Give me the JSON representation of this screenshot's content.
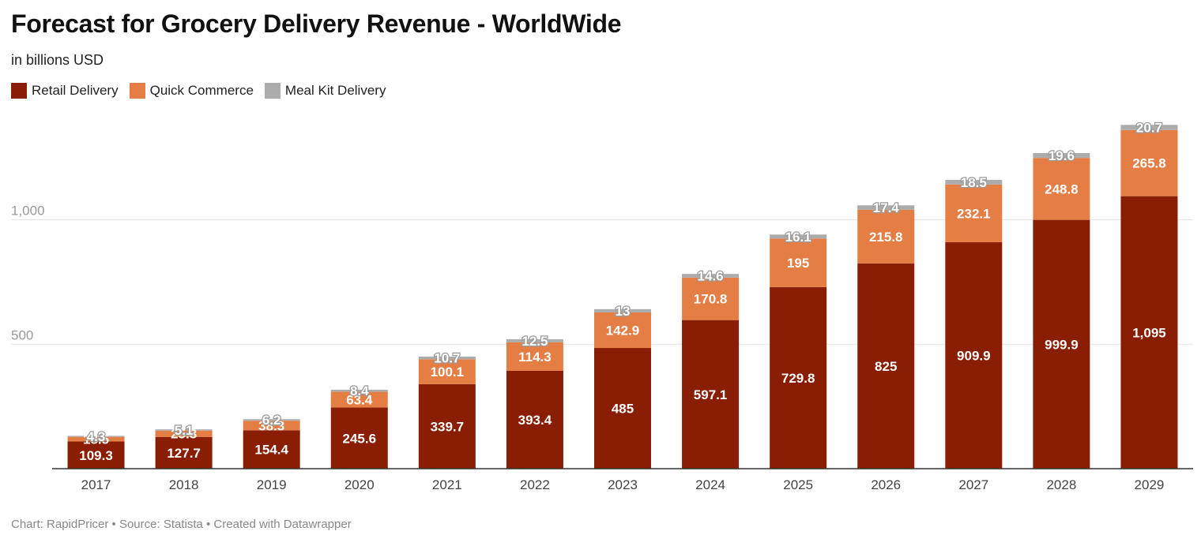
{
  "title": "Forecast for Grocery Delivery Revenue - WorldWide",
  "subtitle": "in billions USD",
  "footer": "Chart: RapidPricer • Source: Statista • Created with Datawrapper",
  "colors": {
    "retail": "#8a1e04",
    "quick": "#e57e45",
    "meal": "#acacac",
    "grid": "#e3e3e3",
    "axis": "#333333"
  },
  "legend": [
    {
      "label": "Retail Delivery",
      "color": "#8a1e04"
    },
    {
      "label": "Quick Commerce",
      "color": "#e57e45"
    },
    {
      "label": "Meal Kit Delivery",
      "color": "#acacac"
    }
  ],
  "chart_data": {
    "type": "bar",
    "stacked": true,
    "categories": [
      "2017",
      "2018",
      "2019",
      "2020",
      "2021",
      "2022",
      "2023",
      "2024",
      "2025",
      "2026",
      "2027",
      "2028",
      "2029"
    ],
    "series": [
      {
        "name": "Retail Delivery",
        "values": [
          109.3,
          127.7,
          154.4,
          245.6,
          339.7,
          393.4,
          485,
          597.1,
          729.8,
          825,
          909.9,
          999.9,
          1095
        ],
        "labels": [
          "109.3",
          "127.7",
          "154.4",
          "245.6",
          "339.7",
          "393.4",
          "485",
          "597.1",
          "729.8",
          "825",
          "909.9",
          "999.9",
          "1,095"
        ]
      },
      {
        "name": "Quick Commerce",
        "values": [
          18.5,
          25.3,
          38.3,
          63.4,
          100.1,
          114.3,
          142.9,
          170.8,
          195,
          215.8,
          232.1,
          248.8,
          265.8
        ],
        "labels": [
          "18.5",
          "25.3",
          "38.3",
          "63.4",
          "100.1",
          "114.3",
          "142.9",
          "170.8",
          "195",
          "215.8",
          "232.1",
          "248.8",
          "265.8"
        ]
      },
      {
        "name": "Meal Kit Delivery",
        "values": [
          4.3,
          5.1,
          6.2,
          8.4,
          10.7,
          12.5,
          13,
          14.6,
          16.1,
          17.4,
          18.5,
          19.6,
          20.7
        ],
        "labels": [
          "4.3",
          "5.1",
          "6.2",
          "8.4",
          "10.7",
          "12.5",
          "13",
          "14.6",
          "16.1",
          "17.4",
          "18.5",
          "19.6",
          "20.7"
        ]
      }
    ],
    "yticks": [
      500,
      1000
    ],
    "ytick_labels": [
      "500",
      "1,000"
    ],
    "ylim": [
      0,
      1400
    ],
    "grid": true,
    "legend_position": "top-left"
  }
}
